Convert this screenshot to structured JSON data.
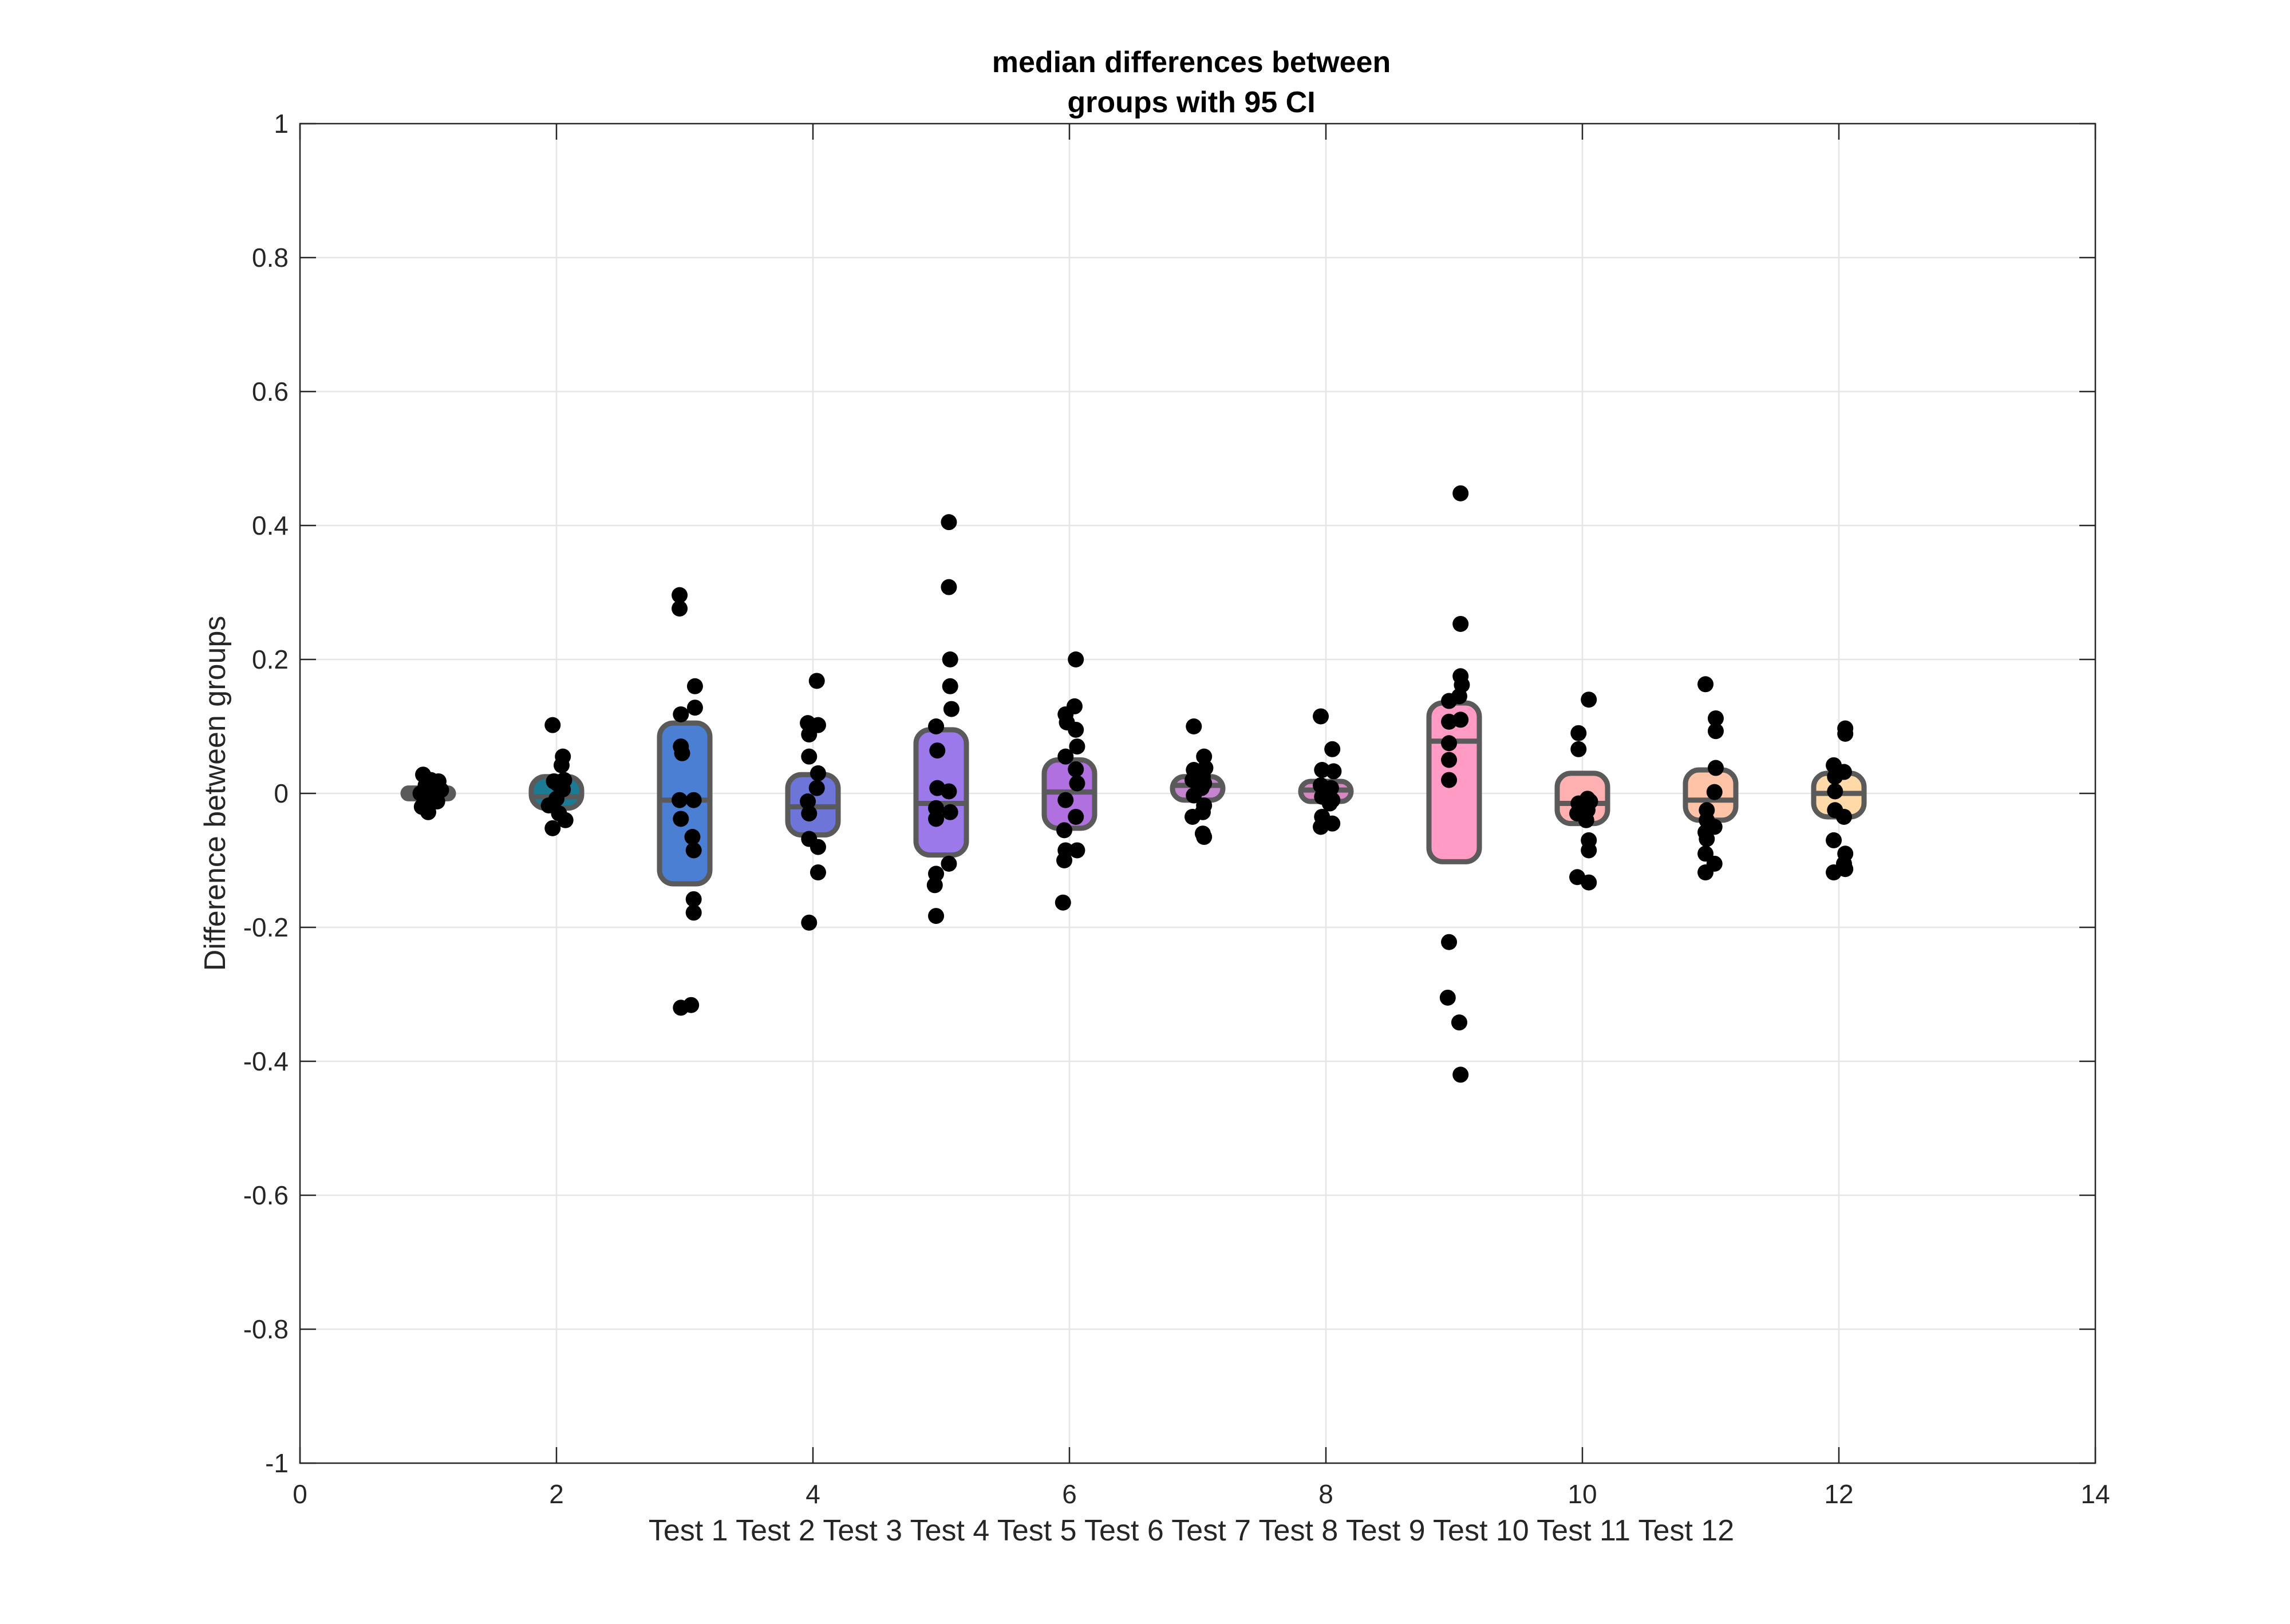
{
  "chart_data": {
    "type": "scatter",
    "title": [
      "median differences between",
      "groups with 95  CI"
    ],
    "ylabel": "Difference between groups",
    "xlabel": "Test 1 Test 2 Test 3 Test 4 Test 5 Test 6 Test 7 Test 8 Test 9 Test 10 Test 11 Test 12",
    "xlim": [
      0,
      14
    ],
    "ylim": [
      -1,
      1
    ],
    "xticks": [
      0,
      2,
      4,
      6,
      8,
      10,
      12,
      14
    ],
    "yticks": [
      -1,
      -0.8,
      -0.6,
      -0.4,
      -0.2,
      0,
      0.2,
      0.4,
      0.6,
      0.8,
      1
    ],
    "grid": true,
    "groups": [
      {
        "x": 1,
        "median": 0.0,
        "ci": [
          -0.008,
          0.008
        ],
        "color": "#555555",
        "points": [
          [
            0.96,
            0.028
          ],
          [
            1.02,
            0.02
          ],
          [
            1.08,
            0.018
          ],
          [
            0.98,
            0.012
          ],
          [
            1.05,
            0.01
          ],
          [
            1.1,
            0.005
          ],
          [
            0.94,
            0.0
          ],
          [
            1.04,
            -0.003
          ],
          [
            0.99,
            -0.01
          ],
          [
            1.07,
            -0.012
          ],
          [
            0.95,
            -0.02
          ],
          [
            1.0,
            -0.028
          ]
        ]
      },
      {
        "x": 2,
        "median": -0.005,
        "ci": [
          -0.022,
          0.025
        ],
        "color": "#1b7a94",
        "points": [
          [
            1.97,
            0.102
          ],
          [
            2.05,
            0.055
          ],
          [
            2.04,
            0.042
          ],
          [
            2.06,
            0.02
          ],
          [
            1.98,
            0.018
          ],
          [
            2.01,
            0.014
          ],
          [
            2.05,
            0.006
          ],
          [
            2.0,
            -0.008
          ],
          [
            1.94,
            -0.018
          ],
          [
            2.02,
            -0.03
          ],
          [
            2.07,
            -0.04
          ],
          [
            1.97,
            -0.052
          ]
        ]
      },
      {
        "x": 3,
        "median": -0.01,
        "ci": [
          -0.135,
          0.105
        ],
        "color": "#4a7fd4",
        "points": [
          [
            2.96,
            0.296
          ],
          [
            2.96,
            0.276
          ],
          [
            3.08,
            0.16
          ],
          [
            3.08,
            0.128
          ],
          [
            2.97,
            0.118
          ],
          [
            2.97,
            0.07
          ],
          [
            2.98,
            0.06
          ],
          [
            2.96,
            -0.01
          ],
          [
            3.07,
            -0.01
          ],
          [
            2.97,
            -0.038
          ],
          [
            3.06,
            -0.065
          ],
          [
            3.07,
            -0.085
          ],
          [
            3.07,
            -0.158
          ],
          [
            3.07,
            -0.178
          ],
          [
            2.97,
            -0.32
          ],
          [
            3.05,
            -0.316
          ]
        ]
      },
      {
        "x": 4,
        "median": -0.02,
        "ci": [
          -0.062,
          0.028
        ],
        "color": "#6e75d8",
        "points": [
          [
            4.03,
            0.168
          ],
          [
            3.96,
            0.105
          ],
          [
            4.04,
            0.102
          ],
          [
            3.97,
            0.088
          ],
          [
            3.97,
            0.055
          ],
          [
            4.04,
            0.03
          ],
          [
            4.03,
            0.008
          ],
          [
            3.96,
            -0.012
          ],
          [
            3.97,
            -0.03
          ],
          [
            3.97,
            -0.068
          ],
          [
            4.04,
            -0.08
          ],
          [
            4.04,
            -0.118
          ],
          [
            3.97,
            -0.193
          ]
        ]
      },
      {
        "x": 5,
        "median": -0.015,
        "ci": [
          -0.092,
          0.095
        ],
        "color": "#9b79ea",
        "points": [
          [
            5.06,
            0.405
          ],
          [
            5.06,
            0.308
          ],
          [
            5.07,
            0.2
          ],
          [
            5.07,
            0.16
          ],
          [
            5.08,
            0.126
          ],
          [
            4.96,
            0.1
          ],
          [
            4.97,
            0.064
          ],
          [
            4.97,
            0.008
          ],
          [
            5.06,
            0.003
          ],
          [
            4.96,
            -0.022
          ],
          [
            5.07,
            -0.028
          ],
          [
            4.96,
            -0.038
          ],
          [
            5.06,
            -0.105
          ],
          [
            4.96,
            -0.12
          ],
          [
            4.95,
            -0.137
          ],
          [
            4.96,
            -0.183
          ]
        ]
      },
      {
        "x": 6,
        "median": 0.002,
        "ci": [
          -0.052,
          0.05
        ],
        "color": "#b070e0",
        "points": [
          [
            6.05,
            0.2
          ],
          [
            6.04,
            0.13
          ],
          [
            5.97,
            0.118
          ],
          [
            5.98,
            0.106
          ],
          [
            6.05,
            0.095
          ],
          [
            6.06,
            0.07
          ],
          [
            5.97,
            0.055
          ],
          [
            6.05,
            0.036
          ],
          [
            6.06,
            0.015
          ],
          [
            5.97,
            -0.01
          ],
          [
            6.05,
            -0.035
          ],
          [
            5.96,
            -0.055
          ],
          [
            6.06,
            -0.085
          ],
          [
            5.97,
            -0.085
          ],
          [
            5.96,
            -0.1
          ],
          [
            5.95,
            -0.163
          ]
        ]
      },
      {
        "x": 7,
        "median": 0.012,
        "ci": [
          -0.01,
          0.025
        ],
        "color": "#c683cf",
        "points": [
          [
            6.97,
            0.1
          ],
          [
            7.05,
            0.055
          ],
          [
            7.06,
            0.038
          ],
          [
            6.97,
            0.035
          ],
          [
            7.04,
            0.025
          ],
          [
            6.96,
            0.02
          ],
          [
            7.05,
            0.015
          ],
          [
            7.03,
            0.008
          ],
          [
            6.97,
            -0.003
          ],
          [
            7.05,
            -0.018
          ],
          [
            7.04,
            -0.028
          ],
          [
            6.96,
            -0.035
          ],
          [
            7.04,
            -0.06
          ],
          [
            7.05,
            -0.065
          ]
        ]
      },
      {
        "x": 8,
        "median": 0.005,
        "ci": [
          -0.012,
          0.018
        ],
        "color": "#d886c1",
        "points": [
          [
            7.96,
            0.115
          ],
          [
            8.05,
            0.066
          ],
          [
            7.97,
            0.035
          ],
          [
            8.06,
            0.033
          ],
          [
            7.96,
            0.012
          ],
          [
            8.04,
            0.008
          ],
          [
            7.97,
            -0.005
          ],
          [
            8.05,
            -0.01
          ],
          [
            8.03,
            -0.015
          ],
          [
            7.97,
            -0.035
          ],
          [
            8.05,
            -0.045
          ],
          [
            7.96,
            -0.05
          ]
        ]
      },
      {
        "x": 9,
        "median": 0.078,
        "ci": [
          -0.102,
          0.135
        ],
        "color": "#ff9bc4",
        "points": [
          [
            9.05,
            0.448
          ],
          [
            9.05,
            0.253
          ],
          [
            9.05,
            0.175
          ],
          [
            9.06,
            0.162
          ],
          [
            9.04,
            0.145
          ],
          [
            8.96,
            0.138
          ],
          [
            9.05,
            0.11
          ],
          [
            8.96,
            0.107
          ],
          [
            8.96,
            0.075
          ],
          [
            8.96,
            0.05
          ],
          [
            8.96,
            0.02
          ],
          [
            8.96,
            -0.222
          ],
          [
            8.95,
            -0.305
          ],
          [
            9.04,
            -0.342
          ],
          [
            9.05,
            -0.42
          ]
        ]
      },
      {
        "x": 10,
        "median": -0.015,
        "ci": [
          -0.045,
          0.03
        ],
        "color": "#ffb0b0",
        "points": [
          [
            10.05,
            0.14
          ],
          [
            9.97,
            0.09
          ],
          [
            9.97,
            0.066
          ],
          [
            10.04,
            -0.008
          ],
          [
            10.06,
            -0.012
          ],
          [
            9.97,
            -0.015
          ],
          [
            10.04,
            -0.025
          ],
          [
            9.96,
            -0.03
          ],
          [
            10.03,
            -0.04
          ],
          [
            10.05,
            -0.07
          ],
          [
            10.05,
            -0.085
          ],
          [
            9.96,
            -0.125
          ],
          [
            10.05,
            -0.133
          ]
        ]
      },
      {
        "x": 11,
        "median": -0.01,
        "ci": [
          -0.04,
          0.035
        ],
        "color": "#ffc4a8",
        "points": [
          [
            10.96,
            0.163
          ],
          [
            11.04,
            0.112
          ],
          [
            11.04,
            0.093
          ],
          [
            11.04,
            0.038
          ],
          [
            11.03,
            0.002
          ],
          [
            10.97,
            -0.025
          ],
          [
            10.97,
            -0.04
          ],
          [
            11.03,
            -0.05
          ],
          [
            10.96,
            -0.058
          ],
          [
            10.97,
            -0.068
          ],
          [
            10.96,
            -0.09
          ],
          [
            11.03,
            -0.105
          ],
          [
            10.96,
            -0.118
          ]
        ]
      },
      {
        "x": 12,
        "median": 0.0,
        "ci": [
          -0.035,
          0.03
        ],
        "color": "#ffd9a8",
        "points": [
          [
            12.05,
            0.097
          ],
          [
            12.05,
            0.089
          ],
          [
            11.96,
            0.042
          ],
          [
            12.04,
            0.032
          ],
          [
            11.97,
            0.025
          ],
          [
            11.97,
            0.003
          ],
          [
            11.97,
            -0.025
          ],
          [
            12.04,
            -0.035
          ],
          [
            11.96,
            -0.07
          ],
          [
            12.05,
            -0.09
          ],
          [
            12.04,
            -0.105
          ],
          [
            11.96,
            -0.118
          ],
          [
            12.05,
            -0.113
          ]
        ]
      }
    ]
  }
}
